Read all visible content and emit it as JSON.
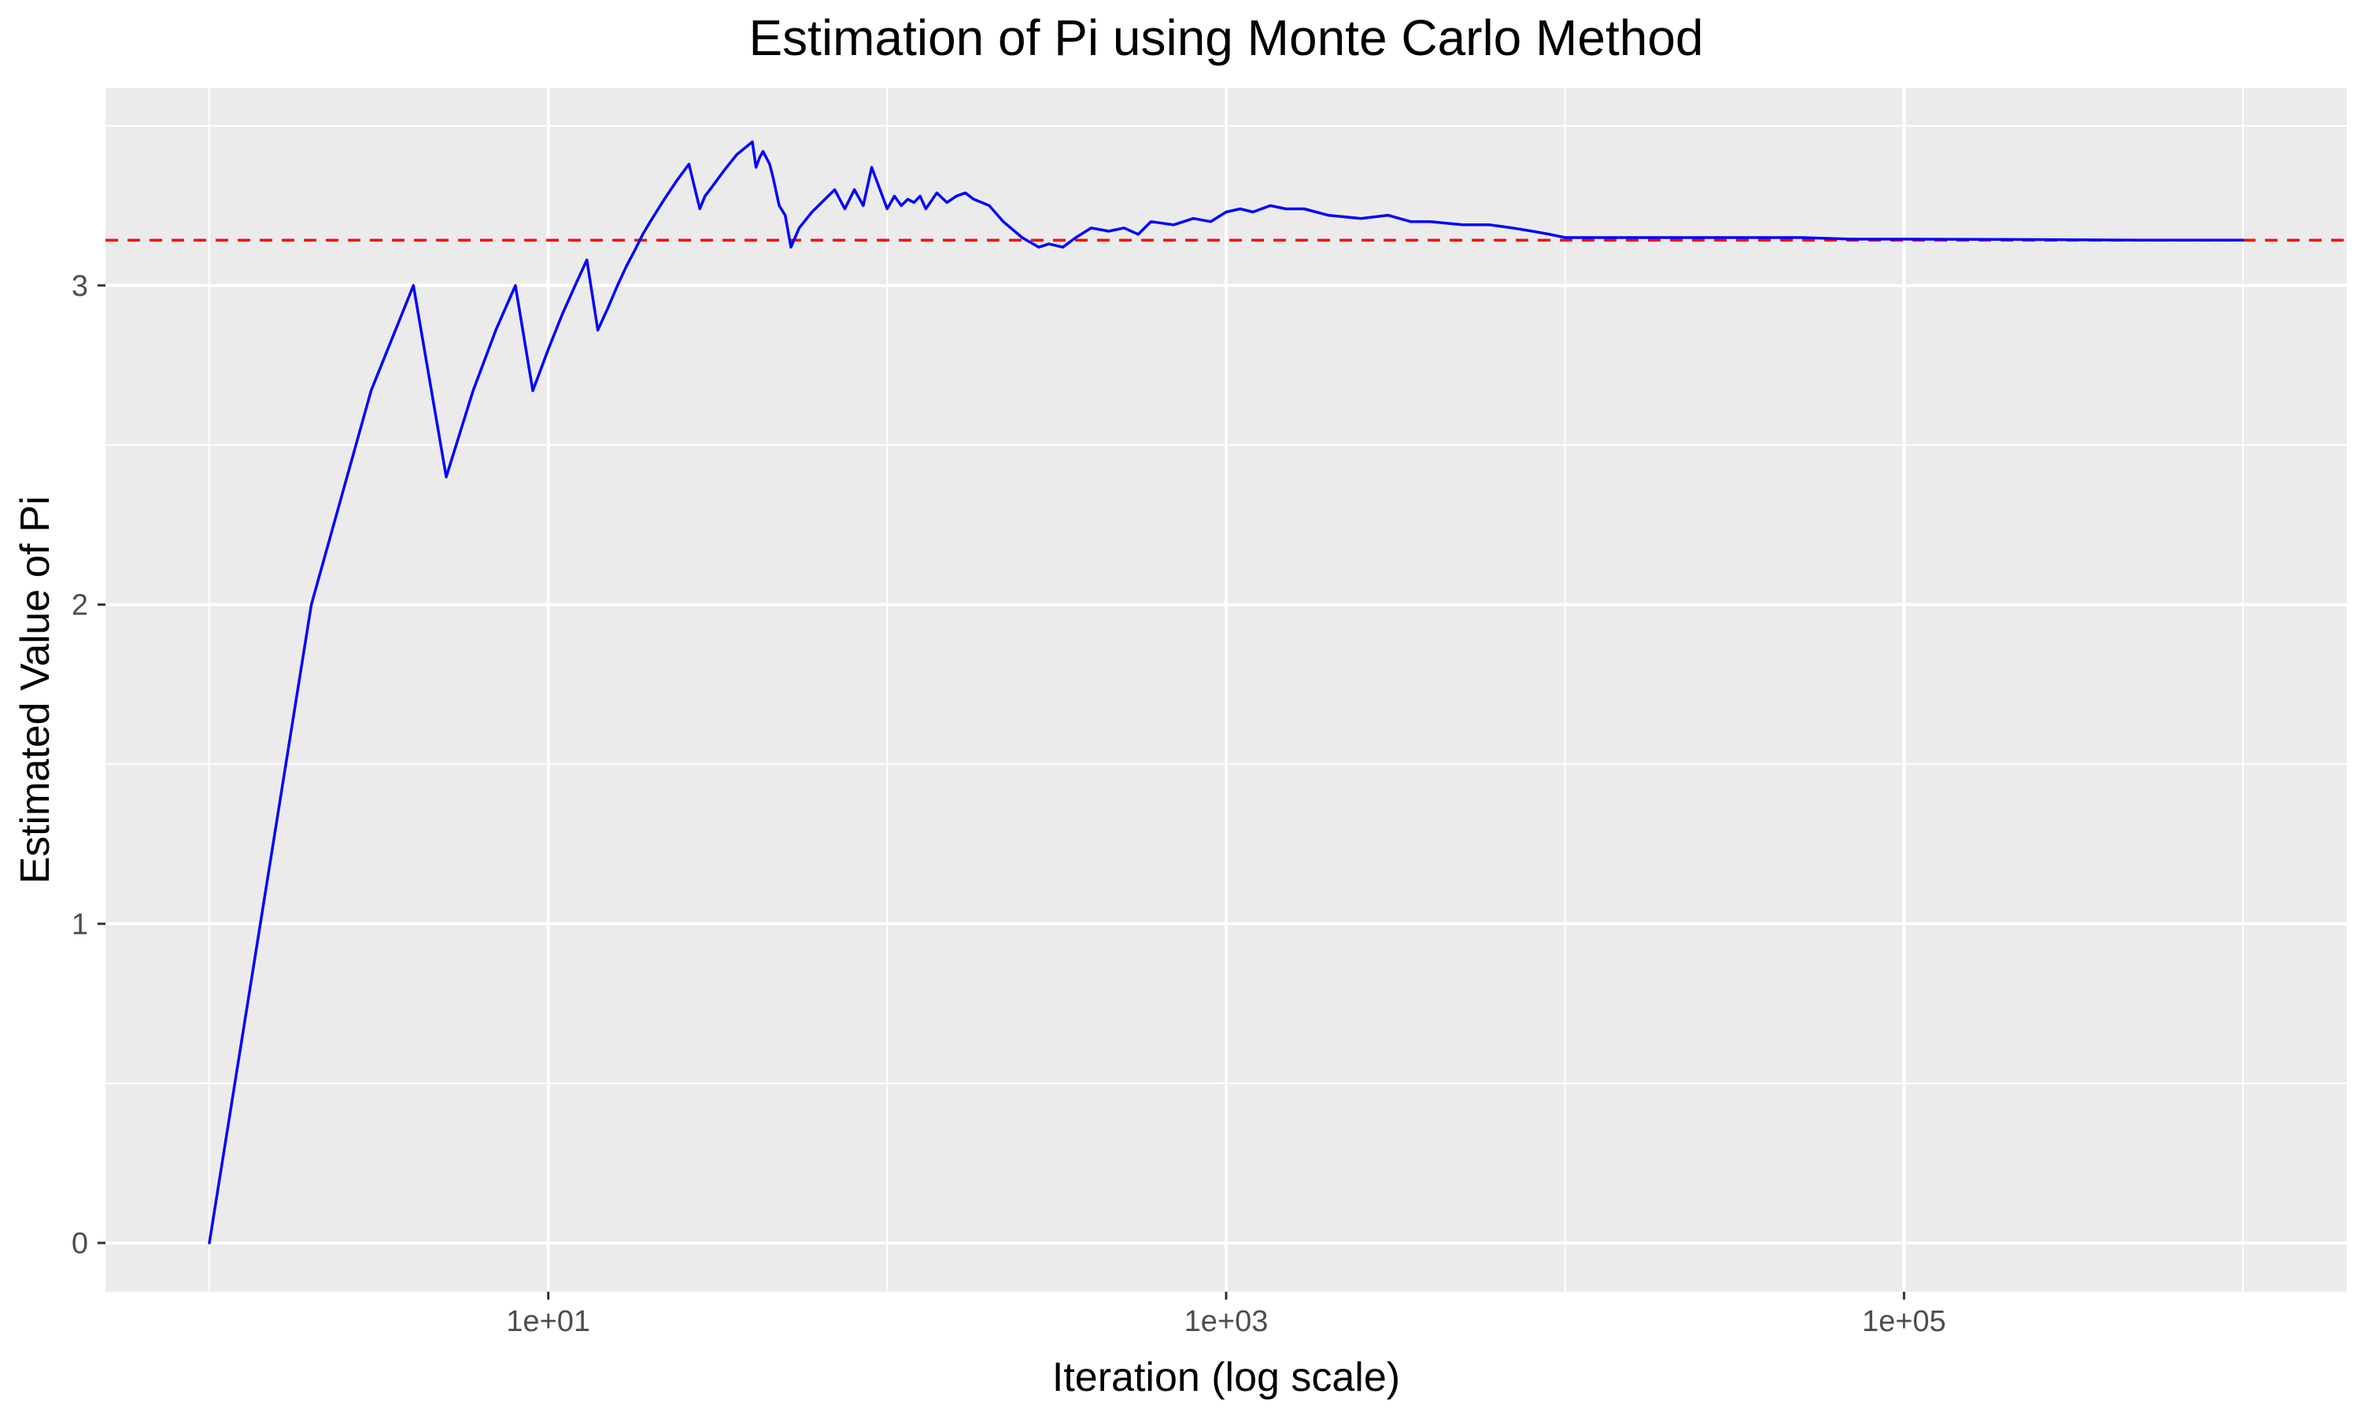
{
  "chart_data": {
    "type": "line",
    "title": "Estimation of Pi using Monte Carlo Method",
    "xlabel": "Iteration (log scale)",
    "ylabel": "Estimated Value of Pi",
    "x_scale": "log10",
    "xlim": [
      1,
      1000000
    ],
    "ylim": [
      0,
      3.5
    ],
    "x_ticks": [
      {
        "value": 10,
        "label": "1e+01"
      },
      {
        "value": 1000,
        "label": "1e+03"
      },
      {
        "value": 100000,
        "label": "1e+05"
      }
    ],
    "x_minor_ticks": [
      1,
      100,
      10000,
      1000000
    ],
    "y_ticks": [
      {
        "value": 0,
        "label": "0"
      },
      {
        "value": 1,
        "label": "1"
      },
      {
        "value": 2,
        "label": "2"
      },
      {
        "value": 3,
        "label": "3"
      }
    ],
    "y_minor_ticks": [
      0.5,
      1.5,
      2.5,
      3.5
    ],
    "grid": true,
    "legend": "none",
    "colors": {
      "panel": "#ebebeb",
      "grid": "#ffffff",
      "series": "#0000ff",
      "reference": "#ff0000"
    },
    "reference_line": {
      "y": 3.14159,
      "style": "dashed"
    },
    "series": [
      {
        "x": [
          1,
          2,
          3,
          4,
          5,
          6,
          7,
          8,
          9,
          10,
          11,
          12,
          13,
          14,
          15,
          16,
          17,
          18,
          19,
          20,
          22,
          24,
          26,
          28,
          29,
          30,
          33,
          36,
          40,
          41,
          42,
          43,
          45,
          46,
          48,
          50,
          52,
          55,
          60,
          70,
          75,
          80,
          85,
          90,
          100,
          105,
          110,
          115,
          120,
          125,
          130,
          140,
          150,
          160,
          170,
          180,
          190,
          200,
          220,
          250,
          280,
          300,
          330,
          360,
          400,
          450,
          500,
          550,
          600,
          700,
          800,
          900,
          1000,
          1100,
          1200,
          1350,
          1500,
          1700,
          2000,
          2500,
          3000,
          3500,
          4000,
          5000,
          6000,
          7000,
          8000,
          9000,
          10000,
          12000,
          15000,
          20000,
          30000,
          50000,
          70000,
          100000,
          200000,
          500000,
          1000000
        ],
        "values": [
          0,
          2,
          2.67,
          3,
          2.4,
          2.67,
          2.86,
          3,
          2.67,
          2.8,
          2.91,
          3,
          3.08,
          2.86,
          2.93,
          3,
          3.06,
          3.11,
          3.16,
          3.2,
          3.27,
          3.33,
          3.38,
          3.24,
          3.28,
          3.3,
          3.36,
          3.41,
          3.45,
          3.37,
          3.4,
          3.42,
          3.38,
          3.34,
          3.25,
          3.22,
          3.12,
          3.18,
          3.23,
          3.3,
          3.24,
          3.3,
          3.25,
          3.37,
          3.24,
          3.28,
          3.25,
          3.27,
          3.26,
          3.28,
          3.24,
          3.29,
          3.26,
          3.28,
          3.29,
          3.27,
          3.26,
          3.25,
          3.2,
          3.15,
          3.12,
          3.13,
          3.12,
          3.15,
          3.18,
          3.17,
          3.18,
          3.16,
          3.2,
          3.19,
          3.21,
          3.2,
          3.23,
          3.24,
          3.23,
          3.25,
          3.24,
          3.24,
          3.22,
          3.21,
          3.22,
          3.2,
          3.2,
          3.19,
          3.19,
          3.18,
          3.17,
          3.16,
          3.15,
          3.15,
          3.15,
          3.15,
          3.15,
          3.15,
          3.145,
          3.145,
          3.144,
          3.142,
          3.142
        ]
      }
    ]
  }
}
